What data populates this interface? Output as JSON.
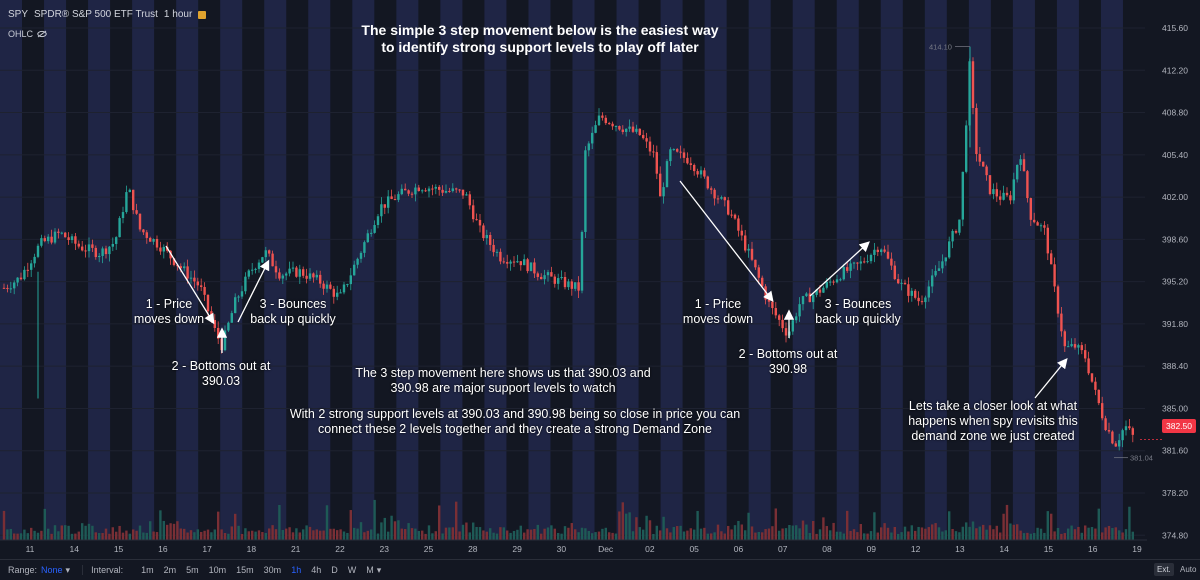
{
  "header": {
    "symbol": "SPY",
    "name": "SPDR® S&P 500 ETF Trust",
    "interval": "1 hour",
    "ohlc_label": "OHLC"
  },
  "annotations": {
    "title_line1": "The simple 3 step movement below is the easiest way",
    "title_line2": "to identify strong support levels to play off later",
    "a1_step1_l1": "1 - Price",
    "a1_step1_l2": "moves down",
    "a1_step2_l1": "2 - Bottoms out at",
    "a1_step2_l2": "390.03",
    "a1_step3_l1": "3 - Bounces",
    "a1_step3_l2": "back up quickly",
    "a2_step1_l1": "1 - Price",
    "a2_step1_l2": "moves down",
    "a2_step2_l1": "2 - Bottoms out at",
    "a2_step2_l2": "390.98",
    "a2_step3_l1": "3 - Bounces",
    "a2_step3_l2": "back up quickly",
    "mid_l1": "The 3 step movement here shows us that 390.03 and",
    "mid_l2": "390.98 are major support levels to watch",
    "mid_l3": "With 2 strong support levels at 390.03 and 390.98 being so close in price you can",
    "mid_l4": "connect these 2 levels together and they create a strong Demand Zone",
    "right_l1": "Lets take a closer look at what",
    "right_l2": "happens when spy revisits this",
    "right_l3": "demand zone we just created"
  },
  "bottom_bar": {
    "range_label": "Range:",
    "range_value": "None",
    "interval_label": "Interval:",
    "intervals": [
      "1m",
      "2m",
      "5m",
      "10m",
      "15m",
      "30m",
      "1h",
      "4h",
      "D",
      "W",
      "M"
    ],
    "active_interval": "1h",
    "ext_label": "Ext.",
    "auto_label": "Auto"
  },
  "chart_data": {
    "type": "candlestick",
    "ylim": [
      373.5,
      416.5
    ],
    "y_ticks": [
      "415.60",
      "412.20",
      "408.80",
      "405.40",
      "402.00",
      "398.60",
      "395.20",
      "391.80",
      "388.40",
      "385.00",
      "381.60",
      "378.20",
      "374.80"
    ],
    "x_tick_labels": [
      "11",
      "14",
      "15",
      "16",
      "17",
      "18",
      "21",
      "22",
      "23",
      "25",
      "28",
      "29",
      "30",
      "Dec",
      "02",
      "05",
      "06",
      "07",
      "08",
      "09",
      "12",
      "13",
      "14",
      "15",
      "16",
      "19"
    ],
    "last_price": "382.50",
    "high_label": "414.10",
    "low_label": "381.04",
    "colors": {
      "up": "#26a69a",
      "down": "#ef5350",
      "session_shade": "#1f2545"
    },
    "close_path": [
      [
        0,
        394.5
      ],
      [
        20,
        395.5
      ],
      [
        40,
        398.2
      ],
      [
        60,
        399.1
      ],
      [
        80,
        398.0
      ],
      [
        100,
        397.5
      ],
      [
        115,
        398.4
      ],
      [
        128,
        402.8
      ],
      [
        140,
        399.4
      ],
      [
        160,
        398.1
      ],
      [
        180,
        396.4
      ],
      [
        200,
        394.8
      ],
      [
        215,
        391.2
      ],
      [
        222,
        390.03
      ],
      [
        235,
        393.5
      ],
      [
        250,
        396.0
      ],
      [
        265,
        397.6
      ],
      [
        280,
        395.8
      ],
      [
        300,
        396.0
      ],
      [
        320,
        395.2
      ],
      [
        340,
        393.9
      ],
      [
        360,
        397.5
      ],
      [
        380,
        401.2
      ],
      [
        400,
        402.2
      ],
      [
        420,
        402.9
      ],
      [
        440,
        402.6
      ],
      [
        465,
        402.3
      ],
      [
        480,
        399.3
      ],
      [
        500,
        397.2
      ],
      [
        520,
        396.9
      ],
      [
        540,
        395.8
      ],
      [
        560,
        395.2
      ],
      [
        580,
        394.6
      ],
      [
        585,
        405.5
      ],
      [
        600,
        408.5
      ],
      [
        620,
        407.7
      ],
      [
        640,
        407.0
      ],
      [
        655,
        405.2
      ],
      [
        660,
        401.8
      ],
      [
        670,
        405.6
      ],
      [
        690,
        405.0
      ],
      [
        710,
        402.8
      ],
      [
        730,
        400.8
      ],
      [
        750,
        397.2
      ],
      [
        770,
        393.2
      ],
      [
        788,
        390.98
      ],
      [
        800,
        393.5
      ],
      [
        820,
        394.5
      ],
      [
        840,
        395.8
      ],
      [
        860,
        396.6
      ],
      [
        880,
        398.2
      ],
      [
        900,
        395.0
      ],
      [
        920,
        393.6
      ],
      [
        940,
        396.4
      ],
      [
        960,
        400.3
      ],
      [
        970,
        413.0
      ],
      [
        975,
        406.0
      ],
      [
        990,
        402.6
      ],
      [
        1000,
        402.0
      ],
      [
        1010,
        401.9
      ],
      [
        1020,
        405.8
      ],
      [
        1030,
        400.6
      ],
      [
        1045,
        399.2
      ],
      [
        1055,
        394.3
      ],
      [
        1065,
        389.8
      ],
      [
        1075,
        390.0
      ],
      [
        1085,
        389.2
      ],
      [
        1095,
        386.3
      ],
      [
        1105,
        383.8
      ],
      [
        1115,
        382.1
      ],
      [
        1125,
        383.6
      ],
      [
        1135,
        382.5
      ]
    ],
    "volume_relative": [
      0.3,
      0.5,
      0.4,
      0.6,
      0.3,
      0.4,
      0.5,
      0.4,
      0.9,
      0.5,
      0.6,
      0.4,
      0.5,
      0.3,
      1.0,
      0.4,
      0.6,
      0.5,
      0.8,
      0.5,
      0.4,
      0.6,
      0.5,
      0.3,
      0.4,
      0.5
    ]
  }
}
